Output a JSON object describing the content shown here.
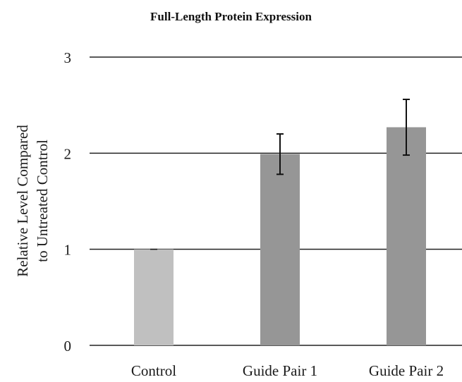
{
  "chart_data": {
    "type": "bar",
    "title": "Full-Length Protein Expression",
    "xlabel": "",
    "ylabel_lines": [
      "Relative Level Compared",
      "to Untreated Control"
    ],
    "categories": [
      "Control",
      "Guide Pair 1",
      "Guide Pair 2"
    ],
    "values": [
      1.0,
      1.99,
      2.27
    ],
    "errors": [
      0.0,
      0.21,
      0.29
    ],
    "bar_colors": [
      "#c0c0c0",
      "#969696",
      "#969696"
    ],
    "ylim": [
      0,
      3
    ],
    "yticks": [
      0,
      1,
      2,
      3
    ],
    "ytick_labels": [
      "0",
      "1",
      "2",
      "3"
    ],
    "grid": true,
    "legend": "none"
  }
}
